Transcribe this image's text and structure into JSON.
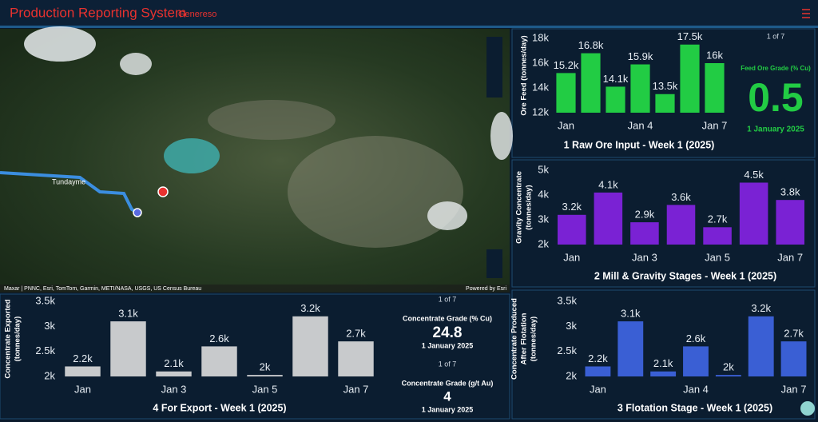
{
  "header": {
    "title": "Production Reporting System",
    "subtitle": "Genereso"
  },
  "map": {
    "place_label": "Tundayme",
    "attribution": "Maxar | PNNC, Esri, TomTom, Garmin, METI/NASA, USGS, US Census Bureau",
    "powered_by": "Powered by Esri"
  },
  "indicators": [
    {
      "pager": "1 of 7",
      "label": "Feed Ore Grade (% Cu)",
      "value": "0.5",
      "date": "1 January 2025"
    },
    {
      "pager": "1 of 7",
      "label": "Concentrate Grade (% Cu)",
      "value": "24.8",
      "date": "1 January 2025"
    },
    {
      "pager": "1 of 7",
      "label": "Concentrate Grade (g/t Au)",
      "value": "4",
      "date": "1 January 2025"
    }
  ],
  "chart_data": [
    {
      "type": "bar",
      "title": "1 Raw Ore Input - Week 1 (2025)",
      "y_label": [
        "Ore Feed (tonnes/day)"
      ],
      "categories": [
        "Jan",
        null,
        null,
        "Jan 4",
        null,
        null,
        "Jan 7"
      ],
      "values": [
        15200,
        16800,
        14100,
        15900,
        13500,
        17500,
        16000
      ],
      "value_labels": [
        "15.2k",
        "16.8k",
        "14.1k",
        "15.9k",
        "13.5k",
        "17.5k",
        "16k"
      ],
      "color": "#22cc44",
      "ylim": [
        12000,
        18000
      ],
      "yticks": [
        {
          "value": 12000,
          "label": "12k"
        },
        {
          "value": 14000,
          "label": "14k"
        },
        {
          "value": 16000,
          "label": "16k"
        },
        {
          "value": 18000,
          "label": "18k"
        }
      ]
    },
    {
      "type": "bar",
      "title": "2 Mill & Gravity Stages - Week 1 (2025)",
      "y_label": [
        "Gravity Concentrate",
        "(tonnes/day)"
      ],
      "categories": [
        "Jan",
        null,
        "Jan 3",
        null,
        "Jan 5",
        null,
        "Jan 7"
      ],
      "values": [
        3200,
        4100,
        2900,
        3600,
        2700,
        4500,
        3800
      ],
      "value_labels": [
        "3.2k",
        "4.1k",
        "2.9k",
        "3.6k",
        "2.7k",
        "4.5k",
        "3.8k"
      ],
      "color": "#7a22d4",
      "ylim": [
        2000,
        5000
      ],
      "yticks": [
        {
          "value": 2000,
          "label": "2k"
        },
        {
          "value": 3000,
          "label": "3k"
        },
        {
          "value": 4000,
          "label": "4k"
        },
        {
          "value": 5000,
          "label": "5k"
        }
      ]
    },
    {
      "type": "bar",
      "title": "3 Flotation Stage - Week 1 (2025)",
      "y_label": [
        "Concentrate Produced",
        "After Flotation",
        "(tonnes/day)"
      ],
      "categories": [
        "Jan",
        null,
        null,
        "Jan 4",
        null,
        null,
        "Jan 7"
      ],
      "values": [
        2200,
        3100,
        2100,
        2600,
        2030,
        3200,
        2700
      ],
      "value_labels": [
        "2.2k",
        "3.1k",
        "2.1k",
        "2.6k",
        "2k",
        "3.2k",
        "2.7k"
      ],
      "color": "#3a5fd4",
      "ylim": [
        2000,
        3500
      ],
      "yticks": [
        {
          "value": 2000,
          "label": "2k"
        },
        {
          "value": 2500,
          "label": "2.5k"
        },
        {
          "value": 3000,
          "label": "3k"
        },
        {
          "value": 3500,
          "label": "3.5k"
        }
      ]
    },
    {
      "type": "bar",
      "title": "4 For Export - Week 1 (2025)",
      "y_label": [
        "Concentrate Exported",
        "(tonnes/day)"
      ],
      "categories": [
        "Jan",
        null,
        "Jan 3",
        null,
        "Jan 5",
        null,
        "Jan 7"
      ],
      "values": [
        2200,
        3100,
        2100,
        2600,
        2030,
        3200,
        2700
      ],
      "value_labels": [
        "2.2k",
        "3.1k",
        "2.1k",
        "2.6k",
        "2k",
        "3.2k",
        "2.7k"
      ],
      "color": "#c8cacc",
      "ylim": [
        2000,
        3500
      ],
      "yticks": [
        {
          "value": 2000,
          "label": "2k"
        },
        {
          "value": 2500,
          "label": "2.5k"
        },
        {
          "value": 3000,
          "label": "3k"
        },
        {
          "value": 3500,
          "label": "3.5k"
        }
      ]
    }
  ]
}
